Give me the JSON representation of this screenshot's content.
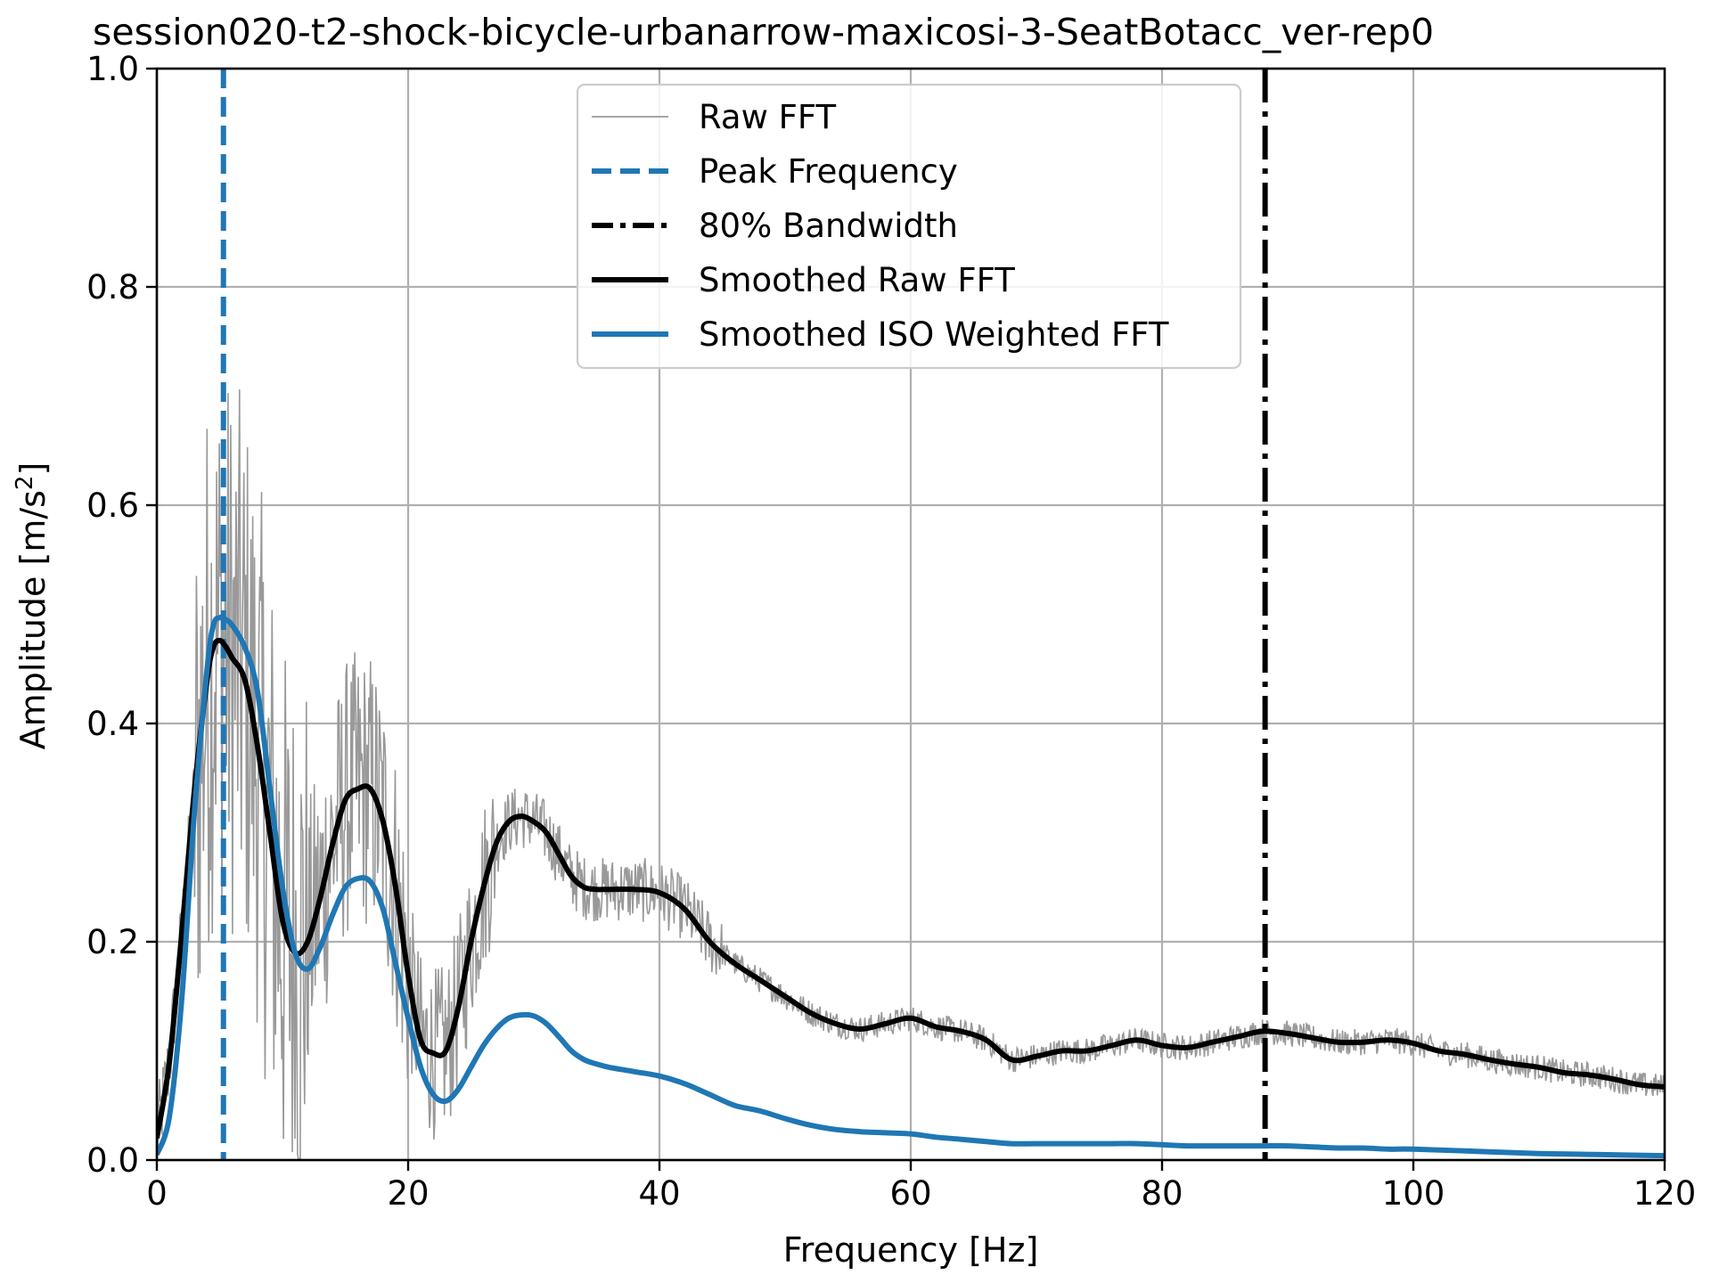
{
  "chart_data": {
    "type": "line",
    "title": "session020-t2-shock-bicycle-urbanarrow-maxicosi-3-SeatBotacc_ver-rep0",
    "xlabel": "Frequency [Hz]",
    "ylabel_main": "Amplitude [m/s",
    "ylabel_sup": "2",
    "ylabel_end": "]",
    "xlim": [
      0,
      120
    ],
    "ylim": [
      0,
      1.0
    ],
    "xticks": [
      0,
      20,
      40,
      60,
      80,
      100,
      120
    ],
    "xtick_labels": [
      "0",
      "20",
      "40",
      "60",
      "80",
      "100",
      "120"
    ],
    "yticks": [
      0.0,
      0.2,
      0.4,
      0.6,
      0.8,
      1.0
    ],
    "ytick_labels": [
      "0.0",
      "0.2",
      "0.4",
      "0.6",
      "0.8",
      "1.0"
    ],
    "grid": true,
    "legend_position": "top-center",
    "peak_frequency": 5.3,
    "bandwidth_80": 88.2,
    "legend": [
      {
        "label": "Raw FFT",
        "style": "thin",
        "color": "#999999"
      },
      {
        "label": "Peak Frequency",
        "style": "dashed",
        "color": "#1f77b4"
      },
      {
        "label": "80% Bandwidth",
        "style": "dashdot",
        "color": "#000000"
      },
      {
        "label": "Smoothed Raw FFT",
        "style": "solid",
        "color": "#000000"
      },
      {
        "label": "Smoothed ISO Weighted FFT",
        "style": "solid",
        "color": "#1f77b4"
      }
    ],
    "series": [
      {
        "key": "smoothed_raw",
        "color": "#000000",
        "x": [
          0,
          1,
          2,
          3,
          4,
          4.5,
          5,
          5.5,
          6,
          7,
          8,
          9,
          10,
          11,
          12,
          13,
          14,
          15,
          16,
          17,
          18,
          19,
          20,
          21,
          22,
          23,
          24,
          25,
          26,
          27,
          28,
          29,
          30,
          31,
          32,
          33,
          34,
          35,
          36,
          38,
          40,
          42,
          44,
          46,
          48,
          50,
          52,
          54,
          56,
          58,
          60,
          62,
          64,
          66,
          68,
          70,
          72,
          74,
          76,
          78,
          80,
          82,
          84,
          86,
          88,
          90,
          92,
          94,
          96,
          98,
          100,
          102,
          104,
          106,
          108,
          110,
          112,
          114,
          116,
          118,
          120
        ],
        "y": [
          0.02,
          0.09,
          0.21,
          0.34,
          0.44,
          0.47,
          0.476,
          0.47,
          0.46,
          0.44,
          0.38,
          0.3,
          0.22,
          0.19,
          0.2,
          0.24,
          0.29,
          0.33,
          0.34,
          0.34,
          0.31,
          0.25,
          0.17,
          0.11,
          0.098,
          0.1,
          0.14,
          0.2,
          0.25,
          0.29,
          0.31,
          0.315,
          0.31,
          0.3,
          0.28,
          0.26,
          0.25,
          0.248,
          0.248,
          0.248,
          0.245,
          0.23,
          0.2,
          0.18,
          0.165,
          0.15,
          0.135,
          0.125,
          0.12,
          0.125,
          0.13,
          0.122,
          0.118,
          0.11,
          0.092,
          0.095,
          0.1,
          0.1,
          0.105,
          0.11,
          0.105,
          0.103,
          0.108,
          0.113,
          0.118,
          0.116,
          0.112,
          0.108,
          0.108,
          0.11,
          0.107,
          0.1,
          0.097,
          0.092,
          0.088,
          0.085,
          0.08,
          0.078,
          0.074,
          0.069,
          0.067
        ]
      },
      {
        "key": "smoothed_iso",
        "color": "#1f77b4",
        "x": [
          0,
          1,
          2,
          3,
          4,
          4.5,
          5,
          5.5,
          6,
          7,
          8,
          9,
          10,
          11,
          12,
          13,
          14,
          15,
          16,
          17,
          18,
          19,
          20,
          21,
          22,
          23,
          24,
          25,
          26,
          27,
          28,
          29,
          30,
          31,
          32,
          33,
          34,
          35,
          36,
          38,
          40,
          42,
          44,
          46,
          48,
          50,
          52,
          54,
          56,
          58,
          60,
          62,
          64,
          66,
          68,
          70,
          72,
          74,
          76,
          78,
          80,
          82,
          84,
          86,
          88,
          90,
          92,
          94,
          96,
          98,
          100,
          105,
          110,
          115,
          120
        ],
        "y": [
          0.005,
          0.04,
          0.15,
          0.32,
          0.45,
          0.49,
          0.497,
          0.495,
          0.49,
          0.47,
          0.43,
          0.34,
          0.25,
          0.19,
          0.175,
          0.195,
          0.225,
          0.25,
          0.258,
          0.255,
          0.23,
          0.18,
          0.13,
          0.085,
          0.06,
          0.054,
          0.065,
          0.085,
          0.105,
          0.12,
          0.13,
          0.133,
          0.132,
          0.125,
          0.113,
          0.1,
          0.092,
          0.088,
          0.085,
          0.081,
          0.077,
          0.07,
          0.06,
          0.05,
          0.045,
          0.038,
          0.032,
          0.028,
          0.026,
          0.025,
          0.024,
          0.021,
          0.019,
          0.017,
          0.015,
          0.015,
          0.015,
          0.015,
          0.015,
          0.015,
          0.014,
          0.013,
          0.013,
          0.013,
          0.013,
          0.013,
          0.012,
          0.011,
          0.011,
          0.01,
          0.01,
          0.008,
          0.006,
          0.005,
          0.004
        ]
      }
    ]
  }
}
